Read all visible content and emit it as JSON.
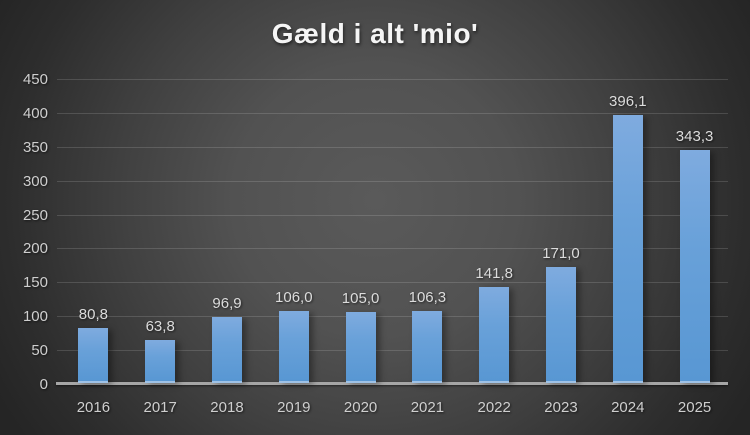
{
  "title": "Gæld i alt 'mio'",
  "chart_data": {
    "type": "bar",
    "title": "Gæld i alt 'mio'",
    "categories": [
      "2016",
      "2017",
      "2018",
      "2019",
      "2020",
      "2021",
      "2022",
      "2023",
      "2024",
      "2025"
    ],
    "values": [
      80.8,
      63.8,
      96.9,
      106.0,
      105.0,
      106.3,
      141.8,
      171.0,
      396.1,
      343.3
    ],
    "value_labels": [
      "80,8",
      "63,8",
      "96,9",
      "106,0",
      "105,0",
      "106,3",
      "141,8",
      "171,0",
      "396,1",
      "343,3"
    ],
    "xlabel": "",
    "ylabel": "",
    "ylim": [
      0,
      450
    ],
    "ytick_step": 50,
    "ytick_labels": [
      "0",
      "50",
      "100",
      "150",
      "200",
      "250",
      "300",
      "350",
      "400",
      "450"
    ],
    "grid": true,
    "legend": false,
    "colors": {
      "bar": "#5b9bd5",
      "bar_gradient_top": "#7fabdf",
      "bar_gradient_bottom": "#5897d3",
      "axis_line": "#a6a6a6",
      "gridline": "rgba(255,255,255,0.14)",
      "tick_text": "#cfcfcf",
      "data_label_text": "#dcdcdc",
      "title_text": "#f5f5f5",
      "background_center": "#5a5a5a",
      "background_edge": "#252525"
    }
  }
}
